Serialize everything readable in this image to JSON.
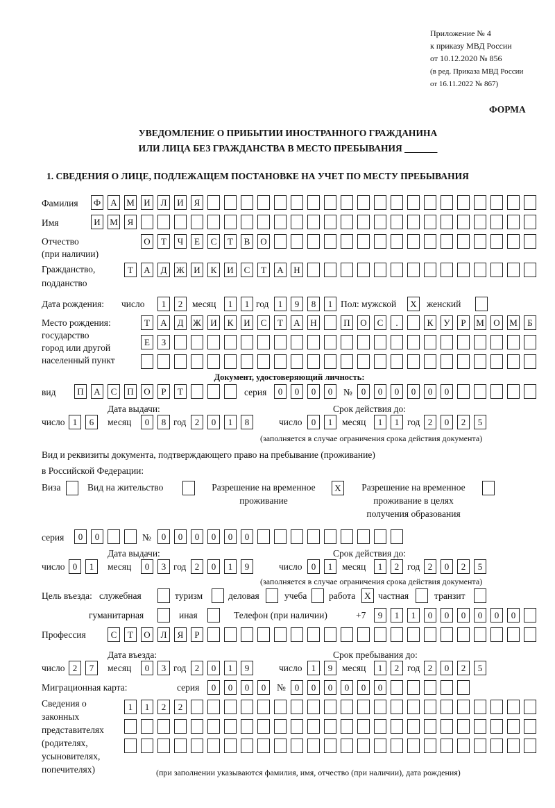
{
  "header": {
    "appendix": [
      "Приложение № 4",
      "к приказу МВД России",
      "от 10.12.2020 № 856"
    ],
    "revision": [
      "(в ред. Приказа МВД России",
      "от 16.11.2022 № 867)"
    ],
    "form_label": "ФОРМА",
    "title_line1": "УВЕДОМЛЕНИЕ О ПРИБЫТИИ ИНОСТРАННОГО ГРАЖДАНИНА",
    "title_line2": "ИЛИ ЛИЦА БЕЗ ГРАЖДАНСТВА В МЕСТО ПРЕБЫВАНИЯ _______",
    "section_title": "1. СВЕДЕНИЯ О ЛИЦЕ, ПОДЛЕЖАЩЕМ ПОСТАНОВКЕ НА УЧЕТ ПО МЕСТУ ПРЕБЫВАНИЯ"
  },
  "person": {
    "surname_label": "Фамилия",
    "surname": "ФАМИЛИЯ",
    "name_label": "Имя",
    "name": "ИМЯ",
    "patronymic_label": [
      "Отчество",
      "(при наличии)"
    ],
    "patronymic": "ОТЧЕСТВО",
    "citizenship_label": [
      "Гражданство,",
      "подданство"
    ],
    "citizenship": "ТАДЖИКИСТАН",
    "birth_date_label": "Дата рождения:",
    "day_label": "число",
    "month_label": "месяц",
    "year_label": "год",
    "birth_day": "12",
    "birth_month": "11",
    "birth_year": "1981",
    "sex_label": "Пол: мужской",
    "male": "X",
    "female_label": "женский",
    "female": "",
    "birthplace_label": [
      "Место рождения:",
      "государство",
      "город или другой",
      "населенный пункт"
    ],
    "birthplace_line1": "ТАДЖИКИСТАН ПОС. КУРМОМБ",
    "birthplace_line2": "ЕЗ",
    "birthplace_line3": ""
  },
  "identity_doc": {
    "heading": "Документ, удостоверяющий личность:",
    "type_label": "вид",
    "type": "ПАСПОРТ",
    "series_label": "серия",
    "series": "0000",
    "number_label": "№",
    "number": "000000",
    "issue_label": "Дата выдачи:",
    "valid_label": "Срок действия до:",
    "issue_day": "16",
    "issue_month": "08",
    "issue_year": "2018",
    "valid_day": "01",
    "valid_month": "11",
    "valid_year": "2025",
    "note": "(заполняется в случае ограничения срока действия документа)"
  },
  "stay_doc": {
    "heading1": "Вид и реквизиты документа, подтверждающего право на пребывание (проживание)",
    "heading2": "в Российской Федерации:",
    "visa_label": "Виза",
    "visa": "",
    "residence_label": "Вид на жительство",
    "residence": "",
    "temp_label": [
      "Разрешение на временное",
      "проживание"
    ],
    "temp": "X",
    "edu_label": [
      "Разрешение на временное",
      "проживание в целях",
      "получения образования"
    ],
    "edu": "",
    "series_label": "серия",
    "series": "00",
    "number_label": "№",
    "number": "000000",
    "issue_label": "Дата выдачи:",
    "valid_label": "Срок действия до:",
    "issue_day": "01",
    "issue_month": "03",
    "issue_year": "2019",
    "valid_day": "01",
    "valid_month": "12",
    "valid_year": "2025",
    "note": "(заполняется в случае ограничения срока действия документа)"
  },
  "purpose": {
    "label": "Цель въезда:",
    "options": [
      {
        "label": "служебная",
        "value": ""
      },
      {
        "label": "туризм",
        "value": ""
      },
      {
        "label": "деловая",
        "value": ""
      },
      {
        "label": "учеба",
        "value": ""
      },
      {
        "label": "работа",
        "value": "X"
      },
      {
        "label": "частная",
        "value": ""
      },
      {
        "label": "транзит",
        "value": ""
      },
      {
        "label": "гуманитарная",
        "value": ""
      },
      {
        "label": "иная",
        "value": ""
      }
    ],
    "phone_label": "Телефон (при наличии)",
    "phone_prefix": "+7",
    "phone": "911000000"
  },
  "profession": {
    "label": "Профессия",
    "value": "СТОЛЯР"
  },
  "entry": {
    "entry_label": "Дата въезда:",
    "stay_label": "Срок пребывания до:",
    "entry_day": "27",
    "entry_month": "03",
    "entry_year": "2019",
    "stay_day": "19",
    "stay_month": "12",
    "stay_year": "2025"
  },
  "migration_card": {
    "label": "Миграционная карта:",
    "series_label": "серия",
    "series": "0000",
    "number_label": "№",
    "number": "000000"
  },
  "representatives": {
    "label": [
      "Сведения о",
      "законных",
      "представителях",
      "(родителях,",
      "усыновителях,",
      "попечителях)"
    ],
    "line1": "1122",
    "line2": "",
    "line3": "",
    "note": "(при заполнении указываются фамилия, имя, отчество (при наличии), дата рождения)"
  }
}
